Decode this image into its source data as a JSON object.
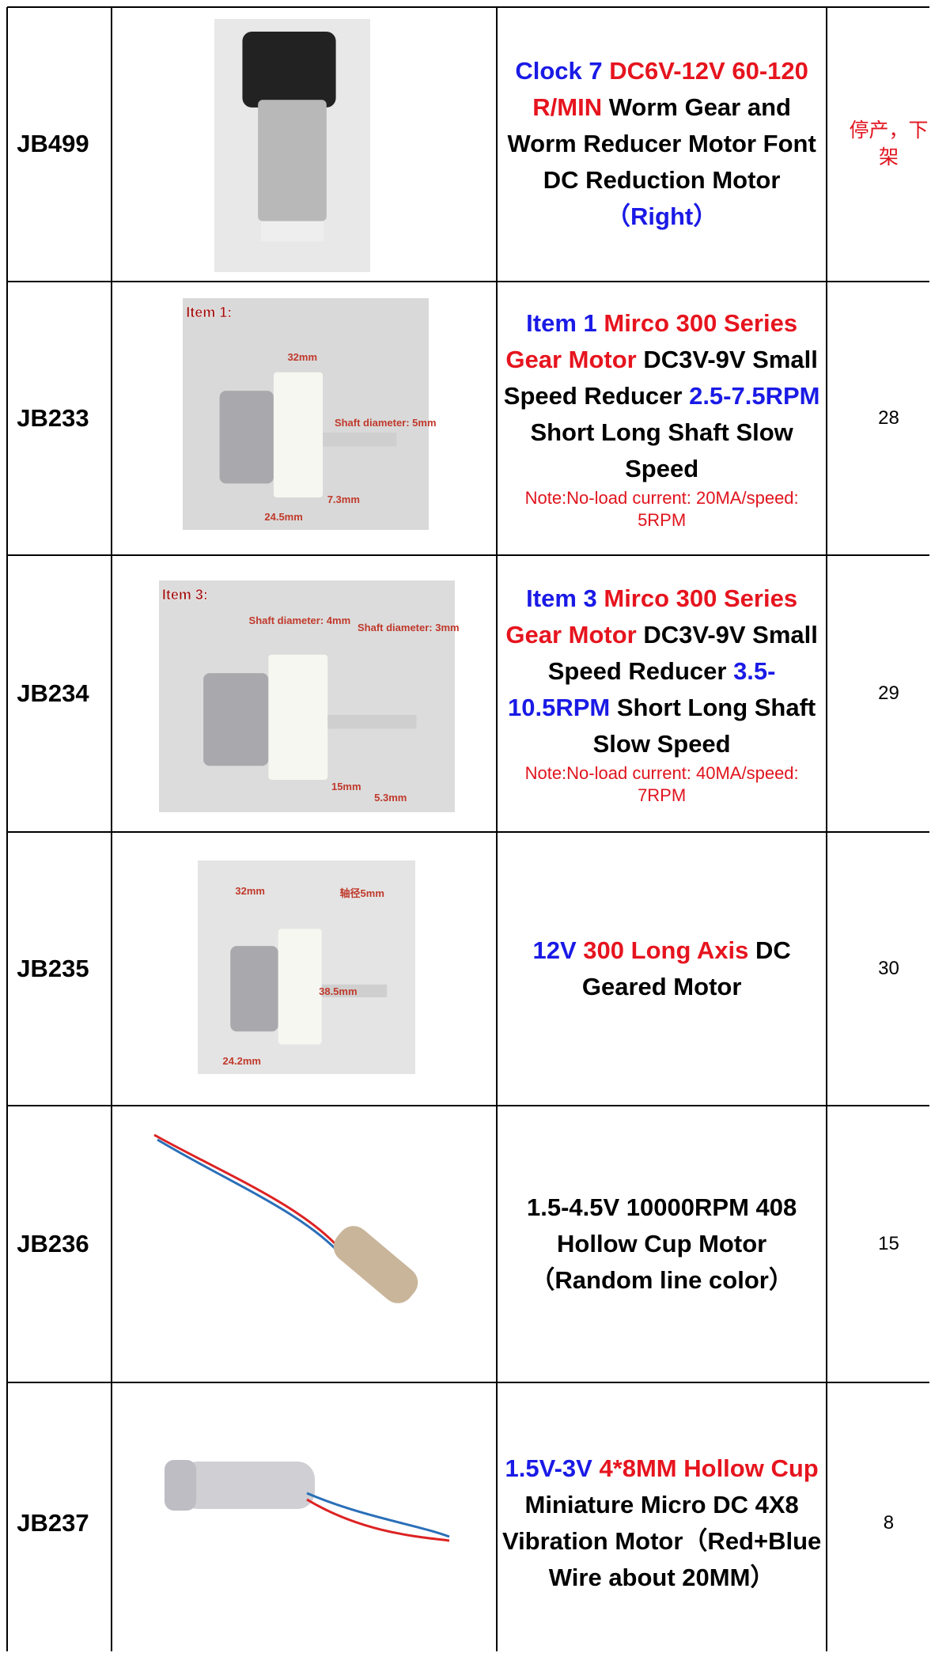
{
  "table": {
    "rows": [
      {
        "code": "JB499",
        "description": [
          {
            "text": "Clock 7 ",
            "color": "#1a1ae6"
          },
          {
            "text": "DC6V-12V 60-120 R/MIN",
            "color": "#e6141e"
          },
          {
            "text": " Worm Gear and Worm Reducer Motor Font DC Reduction Motor",
            "color": "#000000"
          },
          {
            "text": "（Right）",
            "color": "#1a1ae6"
          }
        ],
        "price": "停产，下架"
      },
      {
        "code": "JB233",
        "image_labels": [
          "Item 1:",
          "32mm",
          "Shaft diameter: 5mm",
          "7.3mm",
          "24.5mm"
        ],
        "description": [
          {
            "text": "Item 1 ",
            "color": "#1a1ae6"
          },
          {
            "text": "Mirco 300 Series Gear Motor",
            "color": "#e6141e"
          },
          {
            "text": " DC3V-9V  Small Speed Reducer ",
            "color": "#000000"
          },
          {
            "text": "2.5-7.5RPM",
            "color": "#1a1ae6"
          },
          {
            "text": " Short Long Shaft Slow Speed",
            "color": "#000000"
          }
        ],
        "note": "Note:No-load current: 20MA/speed: 5RPM",
        "price": "28"
      },
      {
        "code": "JB234",
        "image_labels": [
          "Item 3:",
          "Shaft diameter: 4mm",
          "Shaft diameter: 3mm",
          "15mm",
          "5.3mm"
        ],
        "description": [
          {
            "text": "Item 3 ",
            "color": "#1a1ae6"
          },
          {
            "text": "Mirco 300 Series Gear Motor",
            "color": "#e6141e"
          },
          {
            "text": " DC3V-9V  Small Speed Reducer ",
            "color": "#000000"
          },
          {
            "text": "3.5-10.5RPM",
            "color": "#1a1ae6"
          },
          {
            "text": " Short Long Shaft Slow Speed",
            "color": "#000000"
          }
        ],
        "note": "Note:No-load current: 40MA/speed: 7RPM",
        "price": "29"
      },
      {
        "code": "JB235",
        "image_labels": [
          "32mm",
          "轴径5mm",
          "38.5mm",
          "24.2mm"
        ],
        "description": [
          {
            "text": "12V ",
            "color": "#1a1ae6"
          },
          {
            "text": "300 Long Axis",
            "color": "#e6141e"
          },
          {
            "text": " DC Geared Motor",
            "color": "#000000"
          }
        ],
        "price": "30"
      },
      {
        "code": "JB236",
        "description": [
          {
            "text": "1.5-4.5V 10000RPM 408 Hollow Cup Motor（Random line color）",
            "color": "#000000"
          }
        ],
        "price": "15"
      },
      {
        "code": "JB237",
        "description": [
          {
            "text": "1.5V-3V ",
            "color": "#1a1ae6"
          },
          {
            "text": "4*8MM Hollow Cup",
            "color": "#e6141e"
          },
          {
            "text": " Miniature Micro DC 4X8 Vibration Motor（Red+Blue Wire about 20MM）",
            "color": "#000000"
          }
        ],
        "price": "8"
      }
    ]
  }
}
